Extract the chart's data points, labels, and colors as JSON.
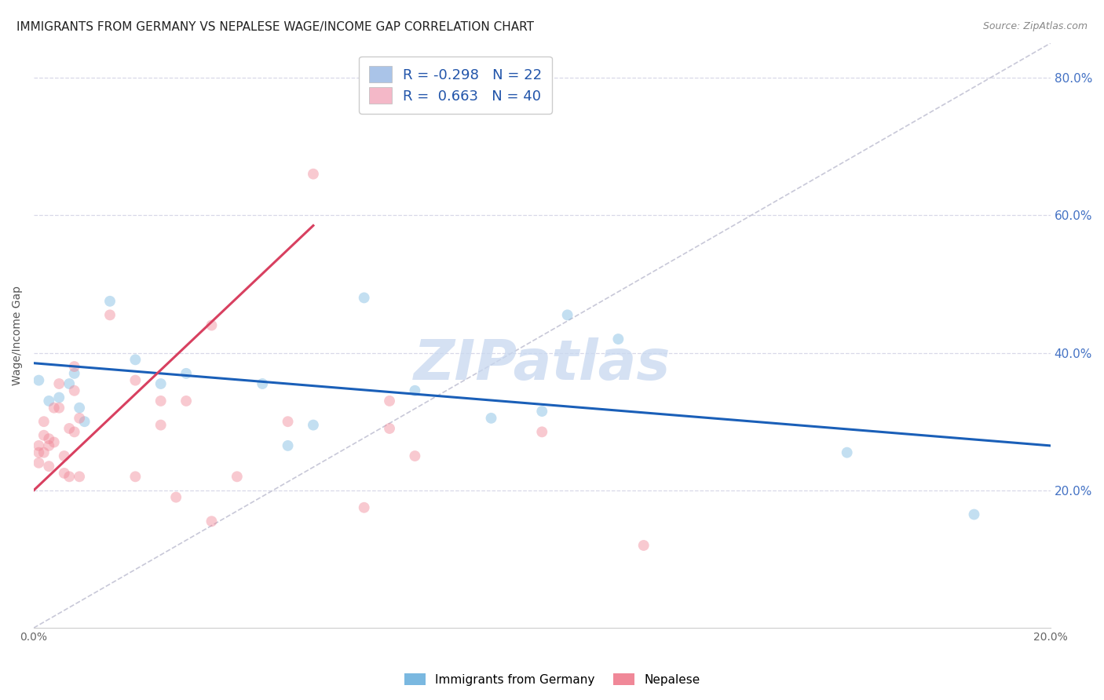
{
  "title": "IMMIGRANTS FROM GERMANY VS NEPALESE WAGE/INCOME GAP CORRELATION CHART",
  "source": "Source: ZipAtlas.com",
  "ylabel": "Wage/Income Gap",
  "xlabel": "",
  "xlim": [
    0.0,
    0.2
  ],
  "ylim": [
    0.0,
    0.85
  ],
  "right_yticks": [
    0.2,
    0.4,
    0.6,
    0.8
  ],
  "right_yticklabels": [
    "20.0%",
    "40.0%",
    "60.0%",
    "80.0%"
  ],
  "xticks": [
    0.0,
    0.02,
    0.04,
    0.06,
    0.08,
    0.1,
    0.12,
    0.14,
    0.16,
    0.18,
    0.2
  ],
  "xticklabels": [
    "0.0%",
    "",
    "",
    "",
    "",
    "",
    "",
    "",
    "",
    "",
    "20.0%"
  ],
  "watermark": "ZIPatlas",
  "legend_entry1": {
    "R": "-0.298",
    "N": "22",
    "color": "#aac4e8"
  },
  "legend_entry2": {
    "R": "0.663",
    "N": "40",
    "color": "#f4b8c8"
  },
  "blue_scatter_x": [
    0.001,
    0.003,
    0.005,
    0.007,
    0.008,
    0.009,
    0.01,
    0.015,
    0.02,
    0.025,
    0.03,
    0.045,
    0.05,
    0.055,
    0.065,
    0.075,
    0.09,
    0.1,
    0.105,
    0.115,
    0.16,
    0.185
  ],
  "blue_scatter_y": [
    0.36,
    0.33,
    0.335,
    0.355,
    0.37,
    0.32,
    0.3,
    0.475,
    0.39,
    0.355,
    0.37,
    0.355,
    0.265,
    0.295,
    0.48,
    0.345,
    0.305,
    0.315,
    0.455,
    0.42,
    0.255,
    0.165
  ],
  "pink_scatter_x": [
    0.001,
    0.001,
    0.001,
    0.002,
    0.002,
    0.002,
    0.003,
    0.003,
    0.003,
    0.004,
    0.004,
    0.005,
    0.005,
    0.006,
    0.006,
    0.007,
    0.007,
    0.008,
    0.008,
    0.008,
    0.009,
    0.009,
    0.015,
    0.02,
    0.02,
    0.025,
    0.025,
    0.028,
    0.03,
    0.035,
    0.035,
    0.04,
    0.05,
    0.055,
    0.065,
    0.07,
    0.07,
    0.075,
    0.1,
    0.12
  ],
  "pink_scatter_y": [
    0.265,
    0.255,
    0.24,
    0.3,
    0.28,
    0.255,
    0.275,
    0.265,
    0.235,
    0.32,
    0.27,
    0.355,
    0.32,
    0.25,
    0.225,
    0.29,
    0.22,
    0.38,
    0.345,
    0.285,
    0.305,
    0.22,
    0.455,
    0.36,
    0.22,
    0.33,
    0.295,
    0.19,
    0.33,
    0.44,
    0.155,
    0.22,
    0.3,
    0.66,
    0.175,
    0.33,
    0.29,
    0.25,
    0.285,
    0.12
  ],
  "blue_line_x0": 0.0,
  "blue_line_x1": 0.2,
  "blue_line_y0": 0.385,
  "blue_line_y1": 0.265,
  "pink_line_x0": 0.0,
  "pink_line_x1": 0.055,
  "pink_line_y0": 0.2,
  "pink_line_y1": 0.585,
  "diagonal_line_x0": 0.0,
  "diagonal_line_x1": 0.2,
  "diagonal_line_y0": 0.0,
  "diagonal_line_y1": 0.85,
  "background_color": "#ffffff",
  "grid_color": "#d8d8e8",
  "scatter_size": 100,
  "scatter_alpha": 0.45,
  "blue_color": "#7ab8e0",
  "blue_line_color": "#1a5fb8",
  "pink_color": "#f08898",
  "pink_line_color": "#d84060",
  "diagonal_color": "#c8c8d8",
  "title_fontsize": 11,
  "source_fontsize": 9,
  "watermark_color": "#c8d8f0",
  "watermark_fontsize": 52
}
